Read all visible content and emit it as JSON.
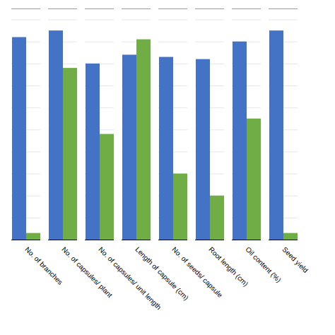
{
  "chart_data": {
    "type": "bar",
    "categories": [
      "No. of branches",
      "No. of capsules/ plant",
      "No. of capsules/ unit length",
      "Length of capsule (cm)",
      "No. of seeds/ capsule",
      "Root length (cm)",
      "Oil content (%)",
      "Seed yield"
    ],
    "series": [
      {
        "color": "#4472C4",
        "values": [
          92,
          95,
          80,
          84,
          83,
          82,
          90,
          95
        ]
      },
      {
        "color": "#70AD47",
        "values": [
          3,
          78,
          48,
          91,
          30,
          20,
          55,
          3
        ]
      }
    ],
    "ylim": [
      0,
      105
    ],
    "yticks": [
      0,
      10,
      20,
      30,
      40,
      50,
      60,
      70,
      80,
      90,
      100
    ],
    "grid": true,
    "tick_labels": "x"
  }
}
